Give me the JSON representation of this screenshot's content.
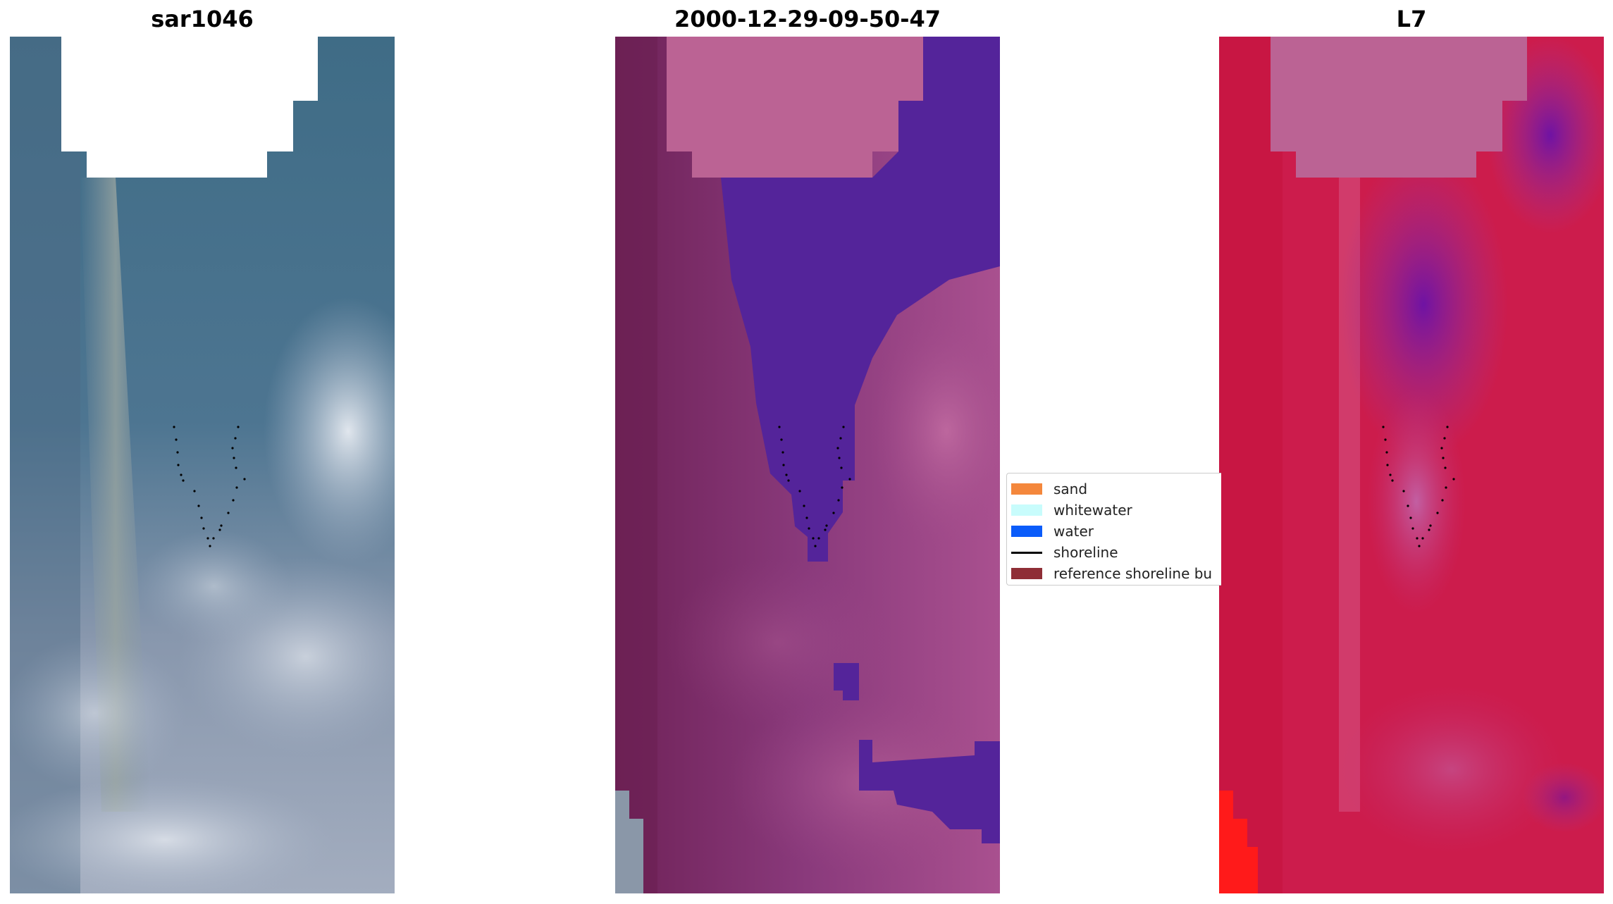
{
  "panels": {
    "rgb": {
      "title": "sar1046"
    },
    "classification": {
      "title": "2000-12-29-09-50-47"
    },
    "index": {
      "title": "L7"
    }
  },
  "legend": {
    "items": [
      {
        "label": "sand",
        "color": "#f4873c",
        "kind": "patch"
      },
      {
        "label": "whitewater",
        "color": "#c8fcfc",
        "kind": "patch"
      },
      {
        "label": "water",
        "color": "#0a5cfa",
        "kind": "patch"
      },
      {
        "label": "shoreline",
        "color": "#000000",
        "kind": "line"
      },
      {
        "label": "reference shoreline bu",
        "color": "#8f2e36",
        "kind": "patch"
      }
    ]
  },
  "colors": {
    "nodata": "#ffffff",
    "classification_water": "#54249a",
    "classification_land": "#8a3a7c",
    "classification_mask": "#bb6394",
    "index_red": "#cc1c4c",
    "index_purple": "#7b1aa8"
  }
}
